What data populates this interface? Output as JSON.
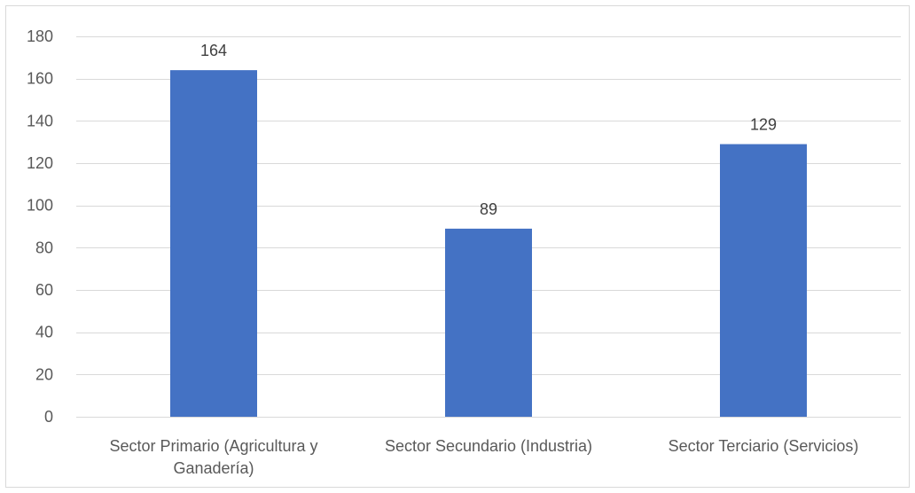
{
  "chart_data": {
    "type": "bar",
    "title": "",
    "xlabel": "",
    "ylabel": "",
    "categories": [
      [
        "Sector Primario (Agricultura y",
        "Ganadería)"
      ],
      [
        "Sector Secundario (Industria)"
      ],
      [
        "Sector Terciario (Servicios)"
      ]
    ],
    "values": [
      164,
      89,
      129
    ],
    "data_labels": [
      "164",
      "89",
      "129"
    ],
    "ylim": [
      0,
      180
    ],
    "y_ticks": [
      0,
      20,
      40,
      60,
      80,
      100,
      120,
      140,
      160,
      180
    ],
    "grid": true,
    "legend": "none",
    "bar_color": "#4472c4"
  }
}
